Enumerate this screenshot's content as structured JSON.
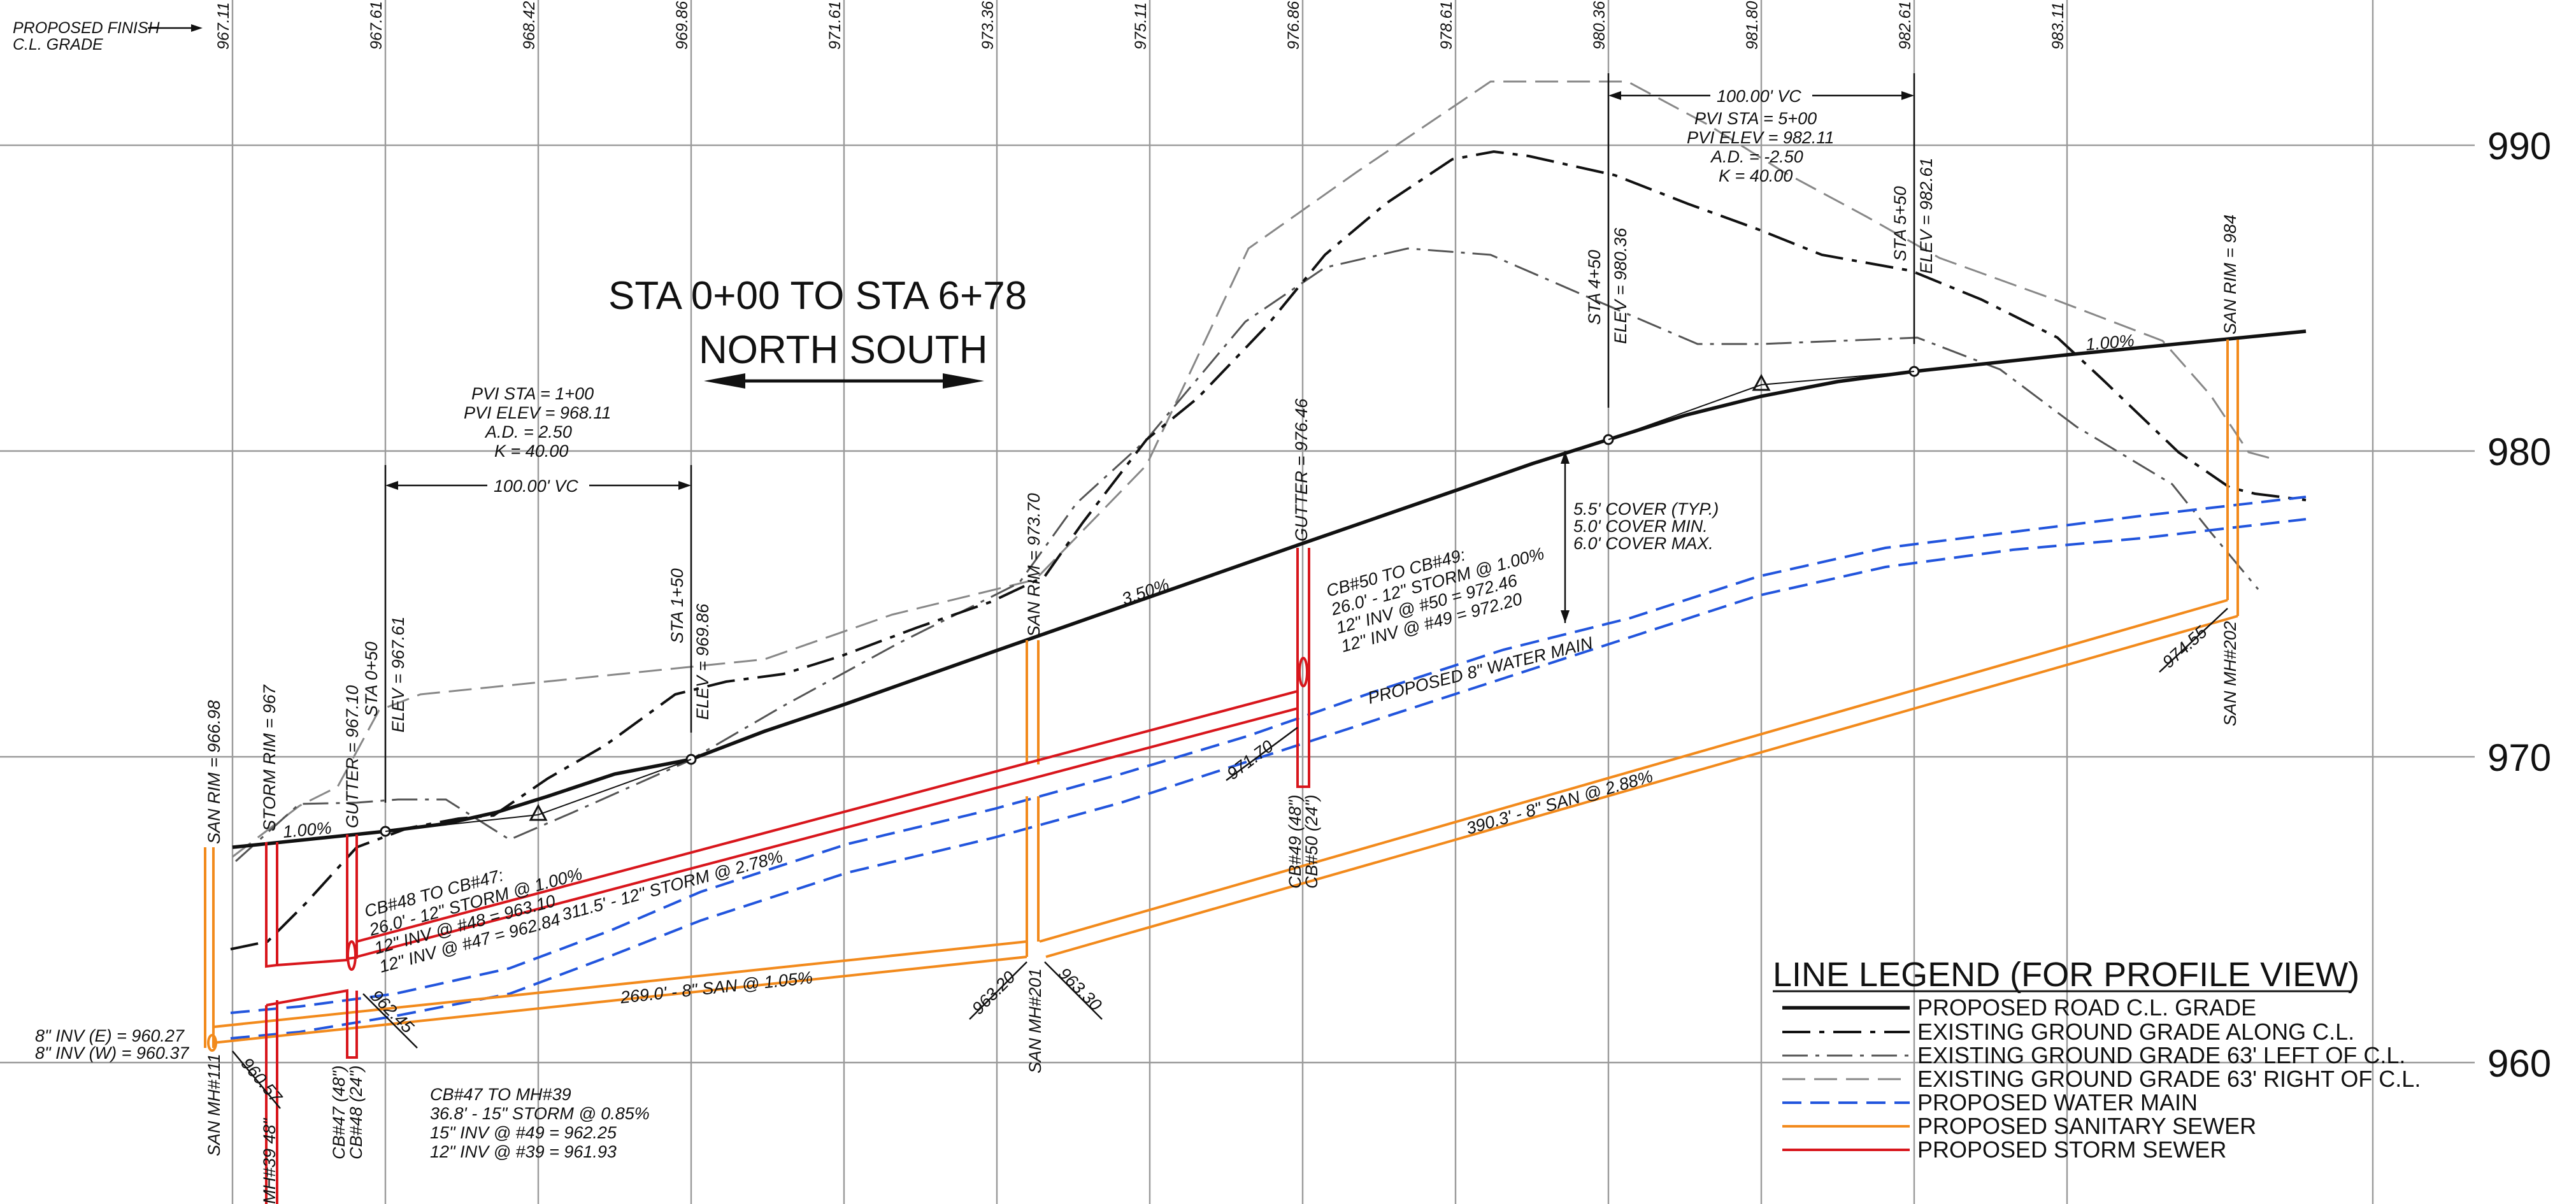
{
  "colors": {
    "road": "#111111",
    "existing_cl": "#111111",
    "existing_left": "#555555",
    "existing_right": "#888888",
    "water": "#2255dd",
    "sanitary": "#f28a1c",
    "storm": "#d8161c",
    "grid": "#9a9a9a"
  },
  "top_label": [
    "PROPOSED FINISH",
    "C.L. GRADE"
  ],
  "station_labels": [
    "967.11",
    "967.61",
    "968.42",
    "969.86",
    "971.61",
    "973.36",
    "975.11",
    "976.86",
    "978.61",
    "980.36",
    "981.80",
    "982.61",
    "983.11"
  ],
  "elevation_labels": [
    "990",
    "980",
    "970",
    "960"
  ],
  "title": {
    "line1": "STA 0+00 TO STA 6+78",
    "line2": "NORTH   SOUTH"
  },
  "vc1": {
    "length": "100.00' VC",
    "pvi_sta": "PVI STA = 1+00",
    "pvi_elev": "PVI ELEV = 968.11",
    "ad": "A.D. = 2.50",
    "k": "K = 40.00"
  },
  "vc2": {
    "length": "100.00' VC",
    "pvi_sta": "PVI STA = 5+00",
    "pvi_elev": "PVI ELEV = 982.11",
    "ad": "A.D. = -2.50",
    "k": "K = 40.00"
  },
  "vertical_annotations": {
    "sta_0_50": "STA 0+50",
    "elev_967_61": "ELEV = 967.61",
    "sta_1_50": "STA 1+50",
    "elev_969_86": "ELEV = 969.86",
    "sta_4_50": "STA 4+50",
    "elev_980_36": "ELEV = 980.36",
    "sta_5_50": "STA 5+50",
    "elev_982_61": "ELEV = 982.61",
    "san_rim_966_98": "SAN RIM = 966.98",
    "storm_rim_967": "STORM RIM = 967",
    "gutter_967_10": "GUTTER = 967.10",
    "san_rim_973_70": "SAN RIM = 973.70",
    "gutter_976_46": "GUTTER = 976.46",
    "san_rim_984": "SAN RIM = 984",
    "san_mh_111": "SAN MH#111",
    "mh_39": "MH#39 48\"",
    "cb47": "CB#47 (48\")",
    "cb48": "CB#48 (24\")",
    "san_mh_201": "SAN MH#201",
    "cb49": "CB#49 (48\")",
    "cb50": "CB#50 (24\")",
    "san_mh_202": "SAN MH#202"
  },
  "pipe_annotations": {
    "cb48_to_cb47": [
      "CB#48 TO CB#47:",
      "26.0' - 12\" STORM @ 1.00%",
      "12\" INV @ #48 = 963.10",
      "12\" INV @ #47 = 962.84"
    ],
    "storm_main": "311.5' - 12\" STORM @ 2.78%",
    "san_269": "269.0' - 8\" SAN @ 1.05%",
    "cb47_to_mh39": [
      "CB#47 TO MH#39",
      "36.8' - 15\" STORM @ 0.85%",
      "15\" INV @ #49 = 962.25",
      "12\" INV @ #39 = 961.93"
    ],
    "cb50_to_cb49": [
      "CB#50 TO CB#49:",
      "26.0' - 12\" STORM @ 1.00%",
      "12\" INV @ #50 = 972.46",
      "12\" INV @ #49 = 972.20"
    ],
    "water_main": "PROPOSED 8\" WATER MAIN",
    "san_390": "390.3' - 8\" SAN @ 2.88%",
    "cover": [
      "5.5' COVER (TYP.)",
      "5.0' COVER MIN.",
      "6.0' COVER MAX."
    ],
    "inv_e": "8\" INV (E) = 960.27",
    "inv_w": "8\" INV (W) = 960.37"
  },
  "grade_labels": {
    "g1": "1.00%",
    "g2": "3.50%",
    "g3": "1.00%"
  },
  "slanted_inverts": {
    "mh111_out": "960.57",
    "near_cb47": "962.45",
    "mh201_in": "963.20",
    "mh201_out": "963.30",
    "cb49_out": "971.70",
    "mh202_in": "974.55"
  },
  "legend": {
    "title": "LINE LEGEND (FOR PROFILE VIEW)",
    "items": [
      {
        "label": "PROPOSED ROAD C.L. GRADE",
        "color": "#111111",
        "style": "solid-thick"
      },
      {
        "label": "EXISTING GROUND GRADE ALONG C.L.",
        "color": "#111111",
        "style": "dash-dot"
      },
      {
        "label": "EXISTING GROUND GRADE 63' LEFT OF C.L.",
        "color": "#555555",
        "style": "dash-dot-thin"
      },
      {
        "label": "EXISTING GROUND GRADE 63' RIGHT OF C.L.",
        "color": "#888888",
        "style": "dashed-thin"
      },
      {
        "label": "PROPOSED WATER MAIN",
        "color": "#2255dd",
        "style": "dashed"
      },
      {
        "label": "PROPOSED SANITARY SEWER",
        "color": "#f28a1c",
        "style": "solid"
      },
      {
        "label": "PROPOSED STORM SEWER",
        "color": "#d8161c",
        "style": "solid"
      }
    ]
  }
}
